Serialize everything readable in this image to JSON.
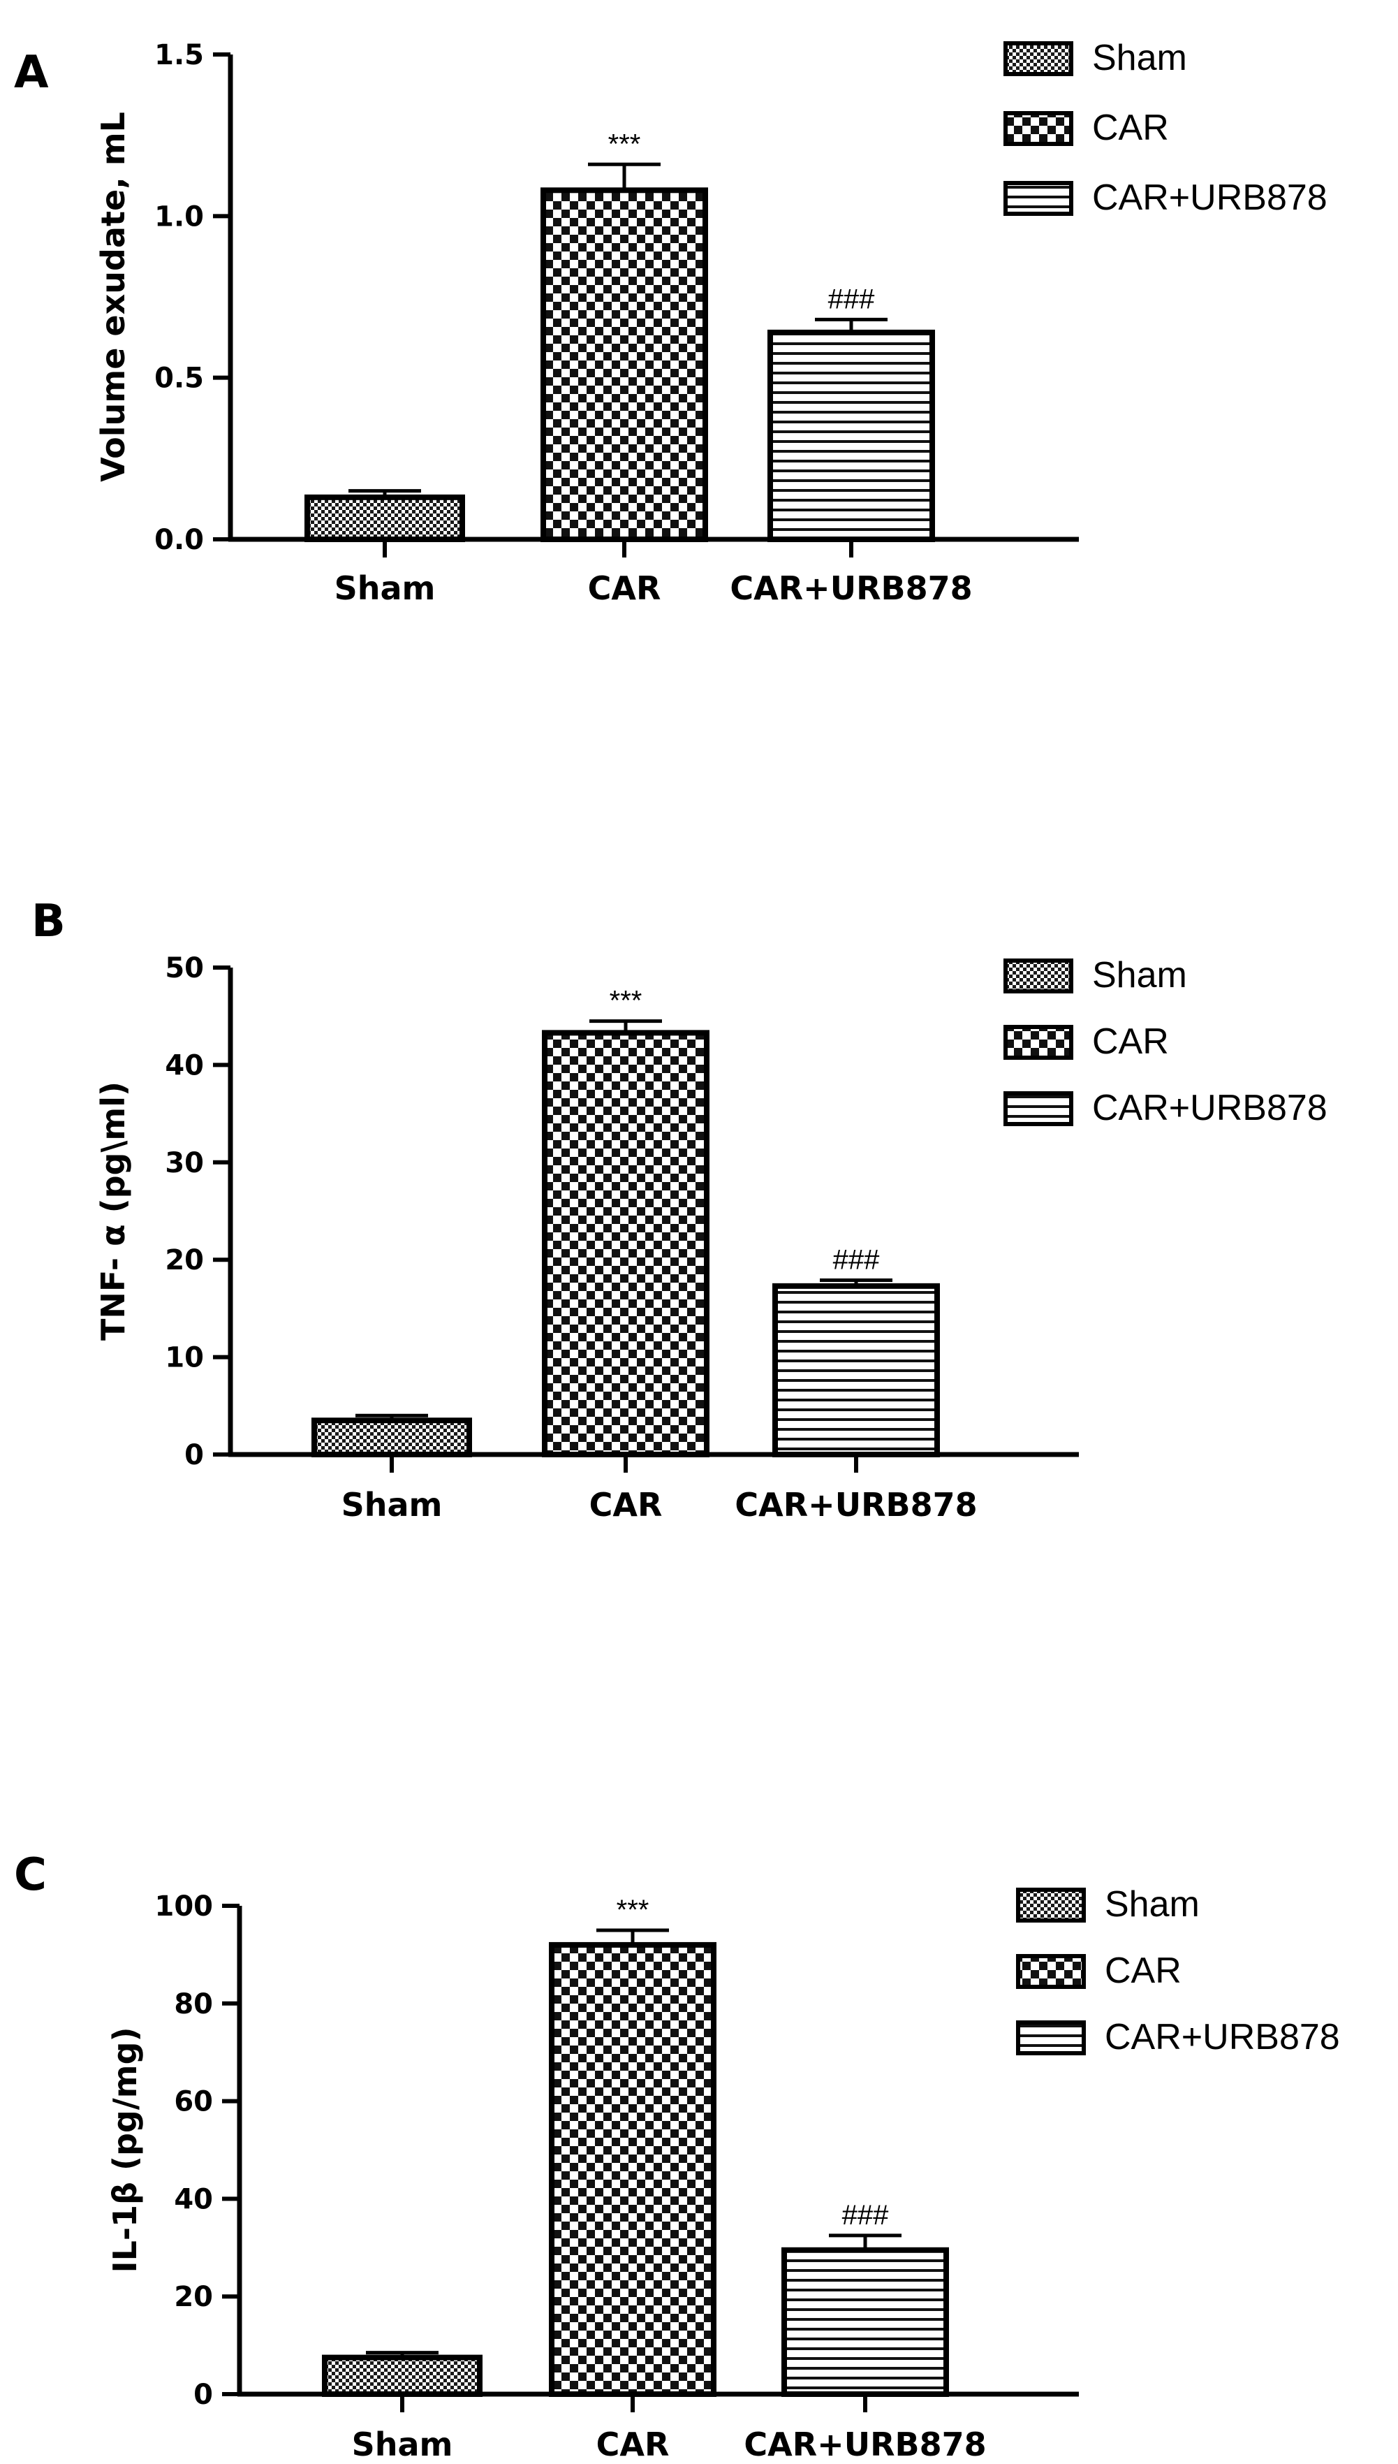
{
  "legend_labels": [
    "Sham",
    "CAR",
    "CAR+URB878"
  ],
  "chart_data": [
    {
      "type": "bar",
      "panel": "A",
      "categories": [
        "Sham",
        "CAR",
        "CAR+URB878"
      ],
      "values": [
        0.13,
        1.08,
        0.64
      ],
      "errors": [
        0.02,
        0.08,
        0.04
      ],
      "annotations": [
        "",
        "***",
        "###"
      ],
      "title": "",
      "xlabel": "",
      "ylabel": "Volume exudate, mL",
      "ylim": [
        0,
        1.5
      ],
      "yticks": [
        0.0,
        0.5,
        1.0,
        1.5
      ],
      "ytick_labels": [
        "0.0",
        "0.5",
        "1.0",
        "1.5"
      ],
      "legend": [
        "Sham",
        "CAR",
        "CAR+URB878"
      ],
      "legend_position": "top-right",
      "grid": false
    },
    {
      "type": "bar",
      "panel": "B",
      "categories": [
        "Sham",
        "CAR",
        "CAR+URB878"
      ],
      "values": [
        3.5,
        43.3,
        17.3
      ],
      "errors": [
        0.5,
        1.2,
        0.6
      ],
      "annotations": [
        "",
        "***",
        "###"
      ],
      "title": "",
      "xlabel": "",
      "ylabel": "TNF- α (pg\\ml)",
      "ylim": [
        0,
        50
      ],
      "yticks": [
        0,
        10,
        20,
        30,
        40,
        50
      ],
      "ytick_labels": [
        "0",
        "10",
        "20",
        "30",
        "40",
        "50"
      ],
      "legend": [
        "Sham",
        "CAR",
        "CAR+URB878"
      ],
      "legend_position": "top-right",
      "grid": false
    },
    {
      "type": "bar",
      "panel": "C",
      "categories": [
        "Sham",
        "CAR",
        "CAR+URB878"
      ],
      "values": [
        7.5,
        92.0,
        29.5
      ],
      "errors": [
        1.0,
        3.0,
        3.0
      ],
      "annotations": [
        "",
        "***",
        "###"
      ],
      "title": "",
      "xlabel": "",
      "ylabel": "IL-1β (pg/mg)",
      "ylim": [
        0,
        100
      ],
      "yticks": [
        0,
        20,
        40,
        60,
        80,
        100
      ],
      "ytick_labels": [
        "0",
        "20",
        "40",
        "60",
        "80",
        "100"
      ],
      "legend": [
        "Sham",
        "CAR",
        "CAR+URB878"
      ],
      "legend_position": "top-right",
      "grid": false
    }
  ]
}
